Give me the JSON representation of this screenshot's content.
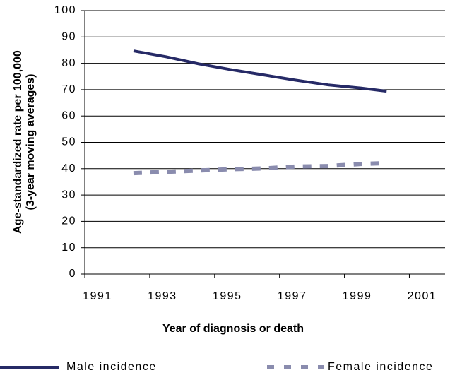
{
  "chart_data": {
    "type": "line",
    "x_label": "Year of diagnosis or death",
    "y_label": [
      "Age-standardized rate per 100,000",
      "(3-year moving averages)"
    ],
    "x": [
      1992.5,
      1993.5,
      1994.5,
      1995.5,
      1996.5,
      1997.5,
      1998.5,
      1999.5,
      2000.3
    ],
    "series": [
      {
        "name": "Male incidence",
        "color": "#262a66",
        "line_style": "solid",
        "values": [
          84.7,
          82.5,
          79.8,
          77.6,
          75.6,
          73.6,
          71.8,
          70.6,
          69.4
        ]
      },
      {
        "name": "Female incidence",
        "color": "#8a8cae",
        "line_style": "dashed",
        "values": [
          38.3,
          38.8,
          39.3,
          39.8,
          40.1,
          40.8,
          41.0,
          41.8,
          42.1
        ]
      }
    ],
    "xlim": [
      1991,
      2002.1
    ],
    "xticks": [
      1991,
      1993,
      1995,
      1997,
      1999,
      2001
    ],
    "ylim": [
      0,
      100
    ],
    "yticks": [
      0,
      10,
      20,
      30,
      40,
      50,
      60,
      70,
      80,
      90,
      100
    ],
    "grid": true,
    "legend": "bottom"
  }
}
